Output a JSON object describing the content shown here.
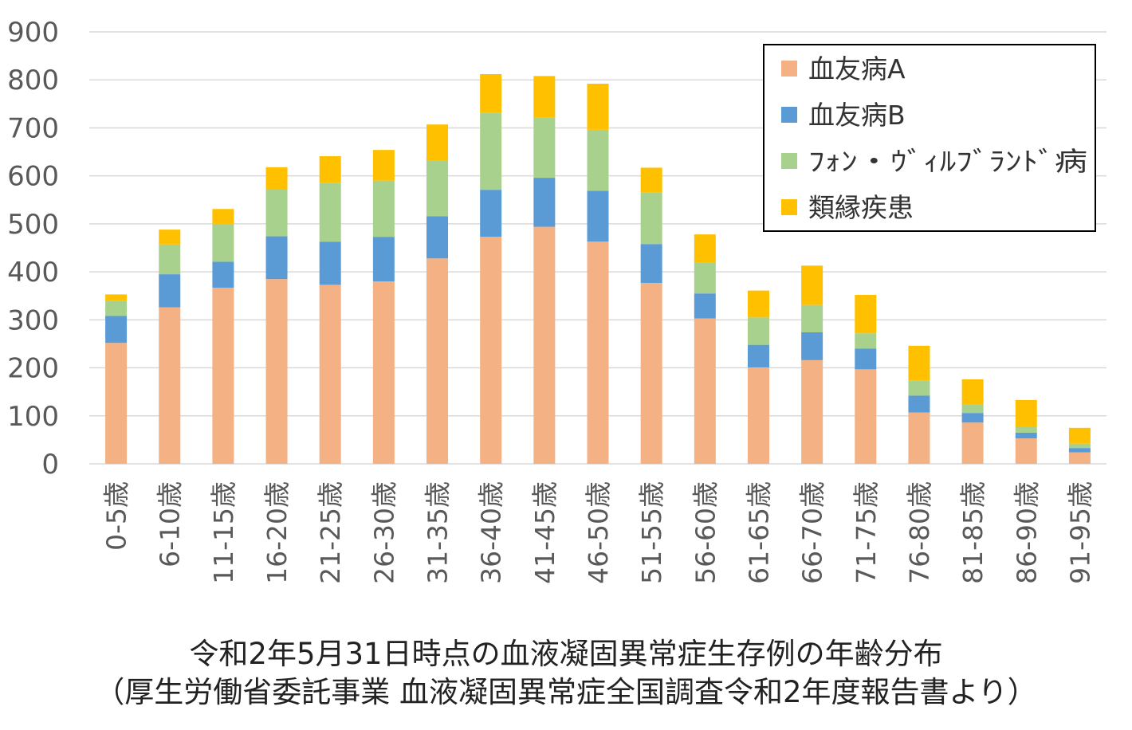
{
  "chart_data": {
    "type": "bar",
    "stacked": true,
    "categories": [
      "0-5歳",
      "6-10歳",
      "11-15歳",
      "16-20歳",
      "21-25歳",
      "26-30歳",
      "31-35歳",
      "36-40歳",
      "41-45歳",
      "46-50歳",
      "51-55歳",
      "56-60歳",
      "61-65歳",
      "66-70歳",
      "71-75歳",
      "76-80歳",
      "81-85歳",
      "86-90歳",
      "91-95歳"
    ],
    "series": [
      {
        "name": "血友病A",
        "color": "#F4B183",
        "values": [
          252,
          326,
          367,
          385,
          373,
          380,
          428,
          473,
          494,
          463,
          377,
          303,
          201,
          216,
          197,
          107,
          86,
          53,
          24
        ]
      },
      {
        "name": "血友病B",
        "color": "#5B9BD5",
        "values": [
          56,
          69,
          54,
          89,
          90,
          93,
          88,
          98,
          102,
          106,
          81,
          52,
          47,
          58,
          43,
          35,
          20,
          12,
          9
        ]
      },
      {
        "name": "ﾌｫﾝ・ｳﾞｨﾙﾌﾞﾗﾝﾄﾞ病",
        "color": "#A9D18E",
        "values": [
          32,
          62,
          79,
          98,
          122,
          117,
          116,
          161,
          125,
          127,
          107,
          65,
          57,
          57,
          32,
          32,
          17,
          13,
          9
        ]
      },
      {
        "name": "類縁疾患",
        "color": "#FFC000",
        "values": [
          13,
          31,
          31,
          46,
          56,
          64,
          75,
          80,
          87,
          96,
          52,
          58,
          56,
          82,
          80,
          72,
          53,
          55,
          33
        ]
      }
    ],
    "ylim": [
      0,
      900
    ],
    "yticks": [
      "0",
      "100",
      "200",
      "300",
      "400",
      "500",
      "600",
      "700",
      "800",
      "900"
    ],
    "grid": true,
    "legend_position": "top-right"
  },
  "caption": {
    "line1": "令和2年5月31日時点の血液凝固異常症生存例の年齢分布",
    "line2": "（厚生労働省委託事業 血液凝固異常症全国調査令和2年度報告書より）"
  }
}
